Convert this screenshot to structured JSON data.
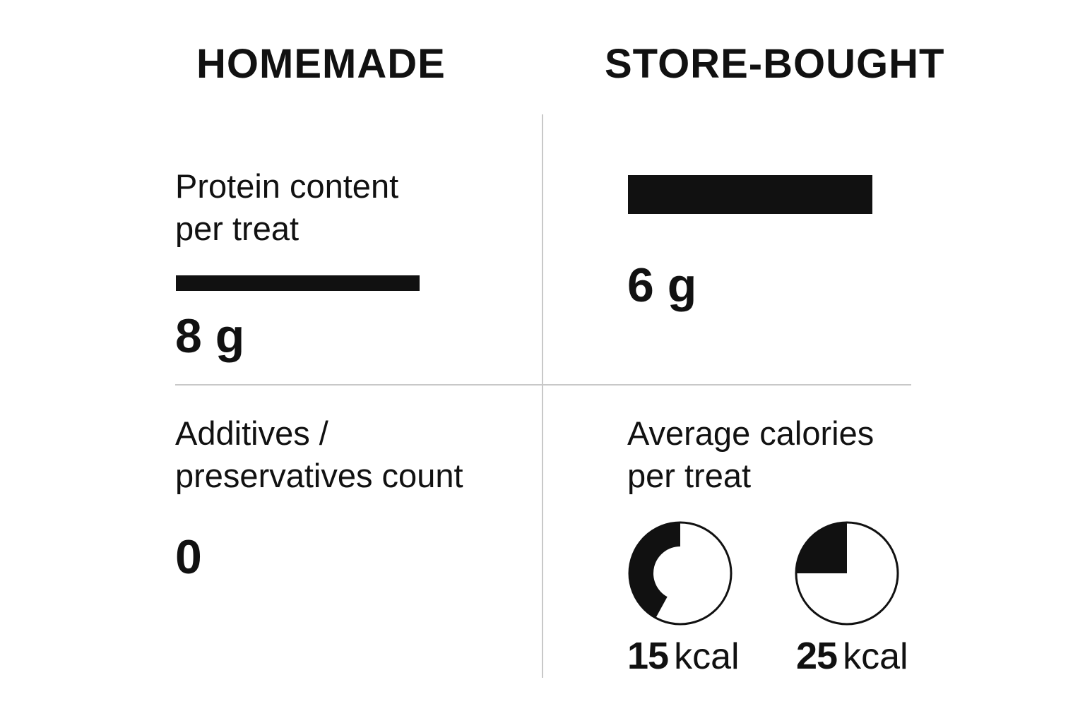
{
  "chart_data": {
    "type": "table",
    "columns": [
      "HOMEMADE",
      "STORE-BOUGHT"
    ],
    "metrics": {
      "protein": {
        "label": "Protein content\nper treat",
        "homemade": {
          "value": 8,
          "unit": "g",
          "display": "8 g"
        },
        "store": {
          "value": 6,
          "unit": "g",
          "display": "6 g"
        }
      },
      "additives": {
        "label": "Additives /\npreservatives count",
        "homemade": {
          "value": 0,
          "display": "0"
        }
      },
      "calories": {
        "label": "Average calories\nper treat",
        "items": [
          {
            "value": 15,
            "num": "15",
            "unit": "kcal",
            "fill_fraction": 0.42
          },
          {
            "value": 25,
            "num": "25",
            "unit": "kcal",
            "fill_fraction": 0.25
          }
        ]
      }
    },
    "colors": {
      "ink": "#111111",
      "divider": "#c8c8c8",
      "background": "#ffffff"
    }
  }
}
